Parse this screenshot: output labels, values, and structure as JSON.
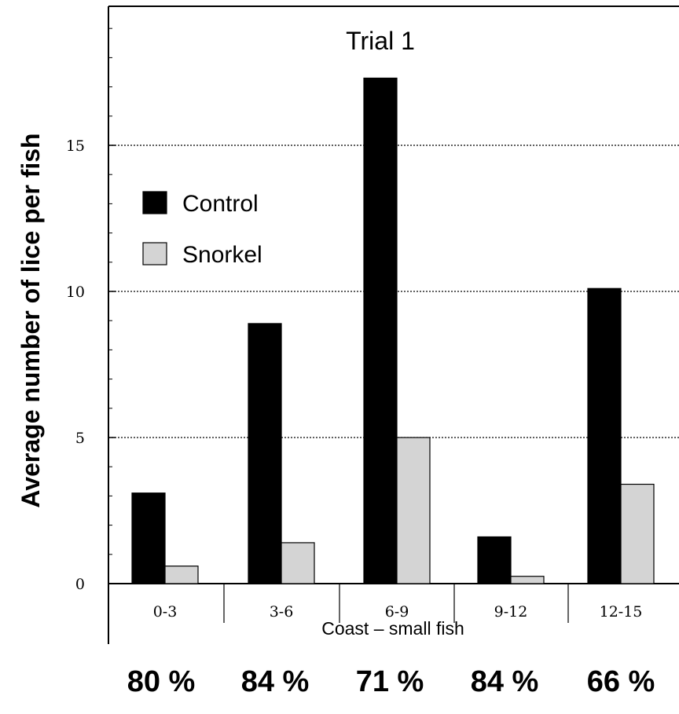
{
  "chart_data": {
    "type": "bar",
    "title": "Trial 1",
    "xlabel": "Coast – small fish",
    "ylabel": "Average number of lice per fish",
    "categories": [
      "0-3",
      "3-6",
      "6-9",
      "9-12",
      "12-15"
    ],
    "series": [
      {
        "name": "Control",
        "values": [
          3.1,
          8.9,
          17.3,
          1.6,
          10.1
        ],
        "color": "#000000"
      },
      {
        "name": "Snorkel",
        "values": [
          0.6,
          1.4,
          5.0,
          0.25,
          3.4
        ],
        "color": "#d4d4d4"
      }
    ],
    "ylim": [
      0,
      19.5
    ],
    "yticks": [
      0,
      5,
      10,
      15
    ],
    "grid": "horizontal dotted at major ticks",
    "legend_position": "upper-left",
    "reductions": [
      "80 %",
      "84 %",
      "71 %",
      "84 %",
      "66 %"
    ]
  }
}
